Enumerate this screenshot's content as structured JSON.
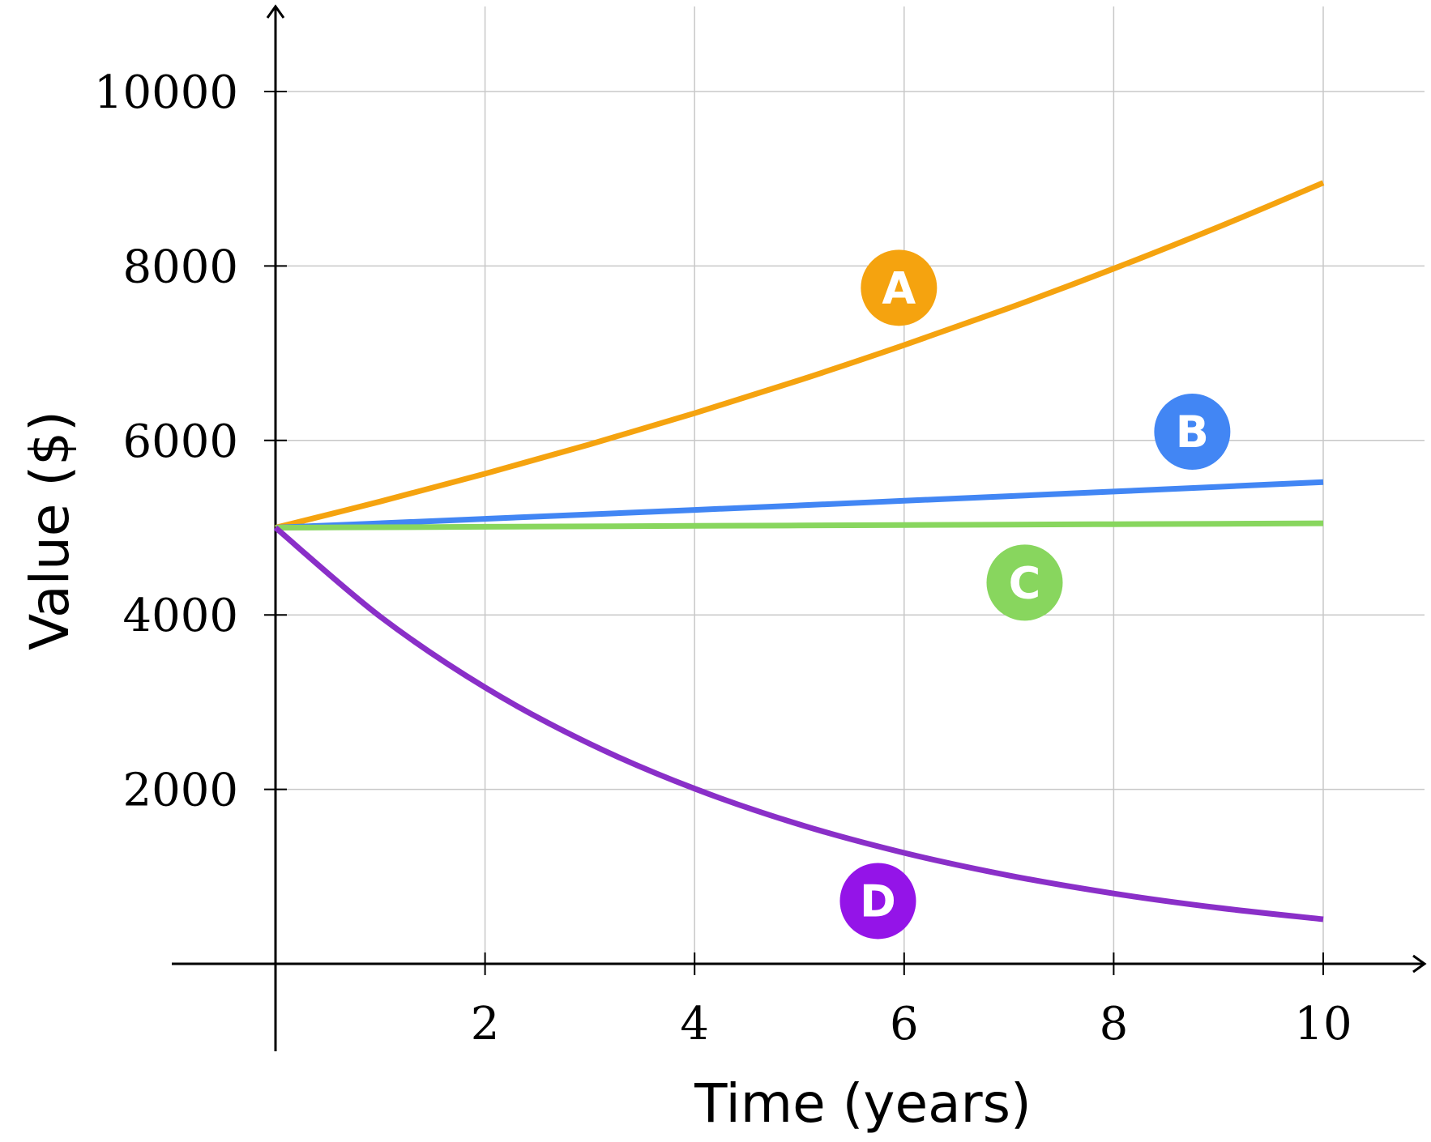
{
  "chart_data": {
    "type": "line",
    "title": "",
    "xlabel": "Time (years)",
    "ylabel": "Value ($)",
    "xlim": [
      -0.97,
      10.95
    ],
    "ylim": [
      -1000,
      11000
    ],
    "x_ticks": [
      2,
      4,
      6,
      8,
      10
    ],
    "y_ticks": [
      2000,
      4000,
      6000,
      8000,
      10000
    ],
    "x_tick_labels": [
      "2",
      "4",
      "6",
      "8",
      "10"
    ],
    "y_tick_labels": [
      "2000",
      "4000",
      "6000",
      "8000",
      "10000"
    ],
    "grid": true,
    "x": [
      0,
      1,
      2,
      3,
      4,
      5,
      6,
      7,
      8,
      9,
      10
    ],
    "series": [
      {
        "name": "A",
        "color": "#f5a30f",
        "label_x": 5.95,
        "label_y": 7750,
        "values": [
          5000,
          5300,
          5618,
          5955,
          6312,
          6691,
          7093,
          7518,
          7969,
          8447,
          8954
        ]
      },
      {
        "name": "B",
        "color": "#4286f4",
        "label_x": 8.75,
        "label_y": 6100,
        "values": [
          5000,
          5050,
          5101,
          5152,
          5203,
          5255,
          5308,
          5361,
          5414,
          5468,
          5523
        ]
      },
      {
        "name": "C",
        "color": "#88d65e",
        "label_x": 7.15,
        "label_y": 4370,
        "values": [
          5000,
          5005,
          5010,
          5015,
          5020,
          5025,
          5030,
          5035,
          5040,
          5045,
          5050
        ]
      },
      {
        "name": "D",
        "color": "#8a2fc8",
        "badge_color": "#9414e8",
        "label_x": 5.75,
        "label_y": 720,
        "values": [
          5000,
          3980,
          3168,
          2522,
          2008,
          1598,
          1272,
          1013,
          806,
          642,
          511
        ]
      }
    ]
  }
}
